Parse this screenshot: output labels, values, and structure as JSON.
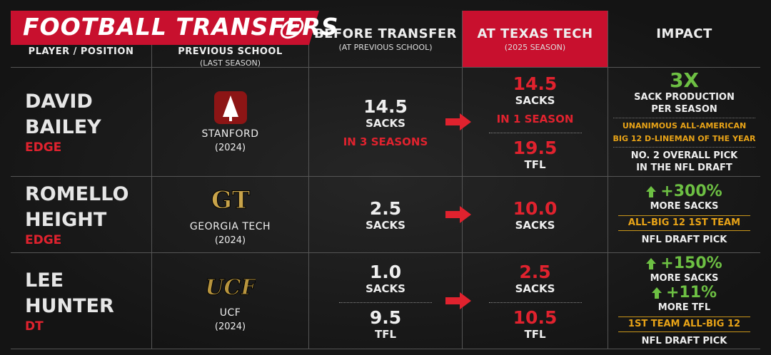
{
  "header": {
    "title": "FOOTBALL TRANSFERS",
    "columns": [
      {
        "label": "PLAYER / POSITION"
      },
      {
        "label": "PREVIOUS SCHOOL",
        "sub": "(LAST SEASON)"
      },
      {
        "label": "BEFORE TRANSFER",
        "sub": "(AT PREVIOUS SCHOOL)"
      },
      {
        "label": "AT TEXAS TECH",
        "sub": "(2025 SEASON)"
      },
      {
        "label": "IMPACT"
      }
    ]
  },
  "rows": [
    {
      "first": "DAVID",
      "last": "BAILEY",
      "position": "EDGE",
      "school": {
        "logo": "stanford",
        "name": "STANFORD",
        "year": "(2024)"
      },
      "before": [
        {
          "value": "14.5",
          "unit": "SACKS",
          "note": "IN 3 SEASONS"
        }
      ],
      "after": [
        {
          "value": "14.5",
          "unit": "SACKS",
          "note": "IN 1 SEASON"
        },
        {
          "value": "19.5",
          "unit": "TFL"
        }
      ],
      "impact": [
        {
          "style": "big",
          "lines": [
            "3X"
          ]
        },
        {
          "style": "text",
          "lines": [
            "SACK PRODUCTION",
            "PER SEASON"
          ]
        },
        {
          "style": "gold",
          "lines": [
            "UNANIMOUS ALL-AMERICAN",
            "BIG 12 D-LINEMAN OF THE YEAR"
          ]
        },
        {
          "style": "text",
          "lines": [
            "NO. 2 OVERALL PICK",
            "IN THE NFL DRAFT"
          ]
        }
      ]
    },
    {
      "first": "ROMELLO",
      "last": "HEIGHT",
      "position": "EDGE",
      "school": {
        "logo": "GT",
        "name": "GEORGIA TECH",
        "year": "(2024)"
      },
      "before": [
        {
          "value": "2.5",
          "unit": "SACKS"
        }
      ],
      "after": [
        {
          "value": "10.0",
          "unit": "SACKS"
        }
      ],
      "impact": [
        {
          "style": "up",
          "lines": [
            "+300%"
          ]
        },
        {
          "style": "text",
          "lines": [
            "MORE SACKS"
          ]
        },
        {
          "style": "badge",
          "lines": [
            "ALL-BIG 12 1ST TEAM"
          ]
        },
        {
          "style": "text",
          "lines": [
            "NFL DRAFT PICK"
          ]
        }
      ]
    },
    {
      "first": "LEE",
      "last": "HUNTER",
      "position": "DT",
      "school": {
        "logo": "UCF",
        "name": "UCF",
        "year": "(2024)"
      },
      "before": [
        {
          "value": "1.0",
          "unit": "SACKS"
        },
        {
          "value": "9.5",
          "unit": "TFL"
        }
      ],
      "after": [
        {
          "value": "2.5",
          "unit": "SACKS"
        },
        {
          "value": "10.5",
          "unit": "TFL"
        }
      ],
      "impact": [
        {
          "style": "up",
          "lines": [
            "+150%"
          ]
        },
        {
          "style": "text",
          "lines": [
            "MORE SACKS"
          ]
        },
        {
          "style": "up",
          "lines": [
            "+11%"
          ]
        },
        {
          "style": "text",
          "lines": [
            "MORE TFL"
          ]
        },
        {
          "style": "badge",
          "lines": [
            "1ST TEAM ALL-BIG 12"
          ]
        },
        {
          "style": "text",
          "lines": [
            "NFL DRAFT PICK"
          ]
        }
      ]
    }
  ]
}
